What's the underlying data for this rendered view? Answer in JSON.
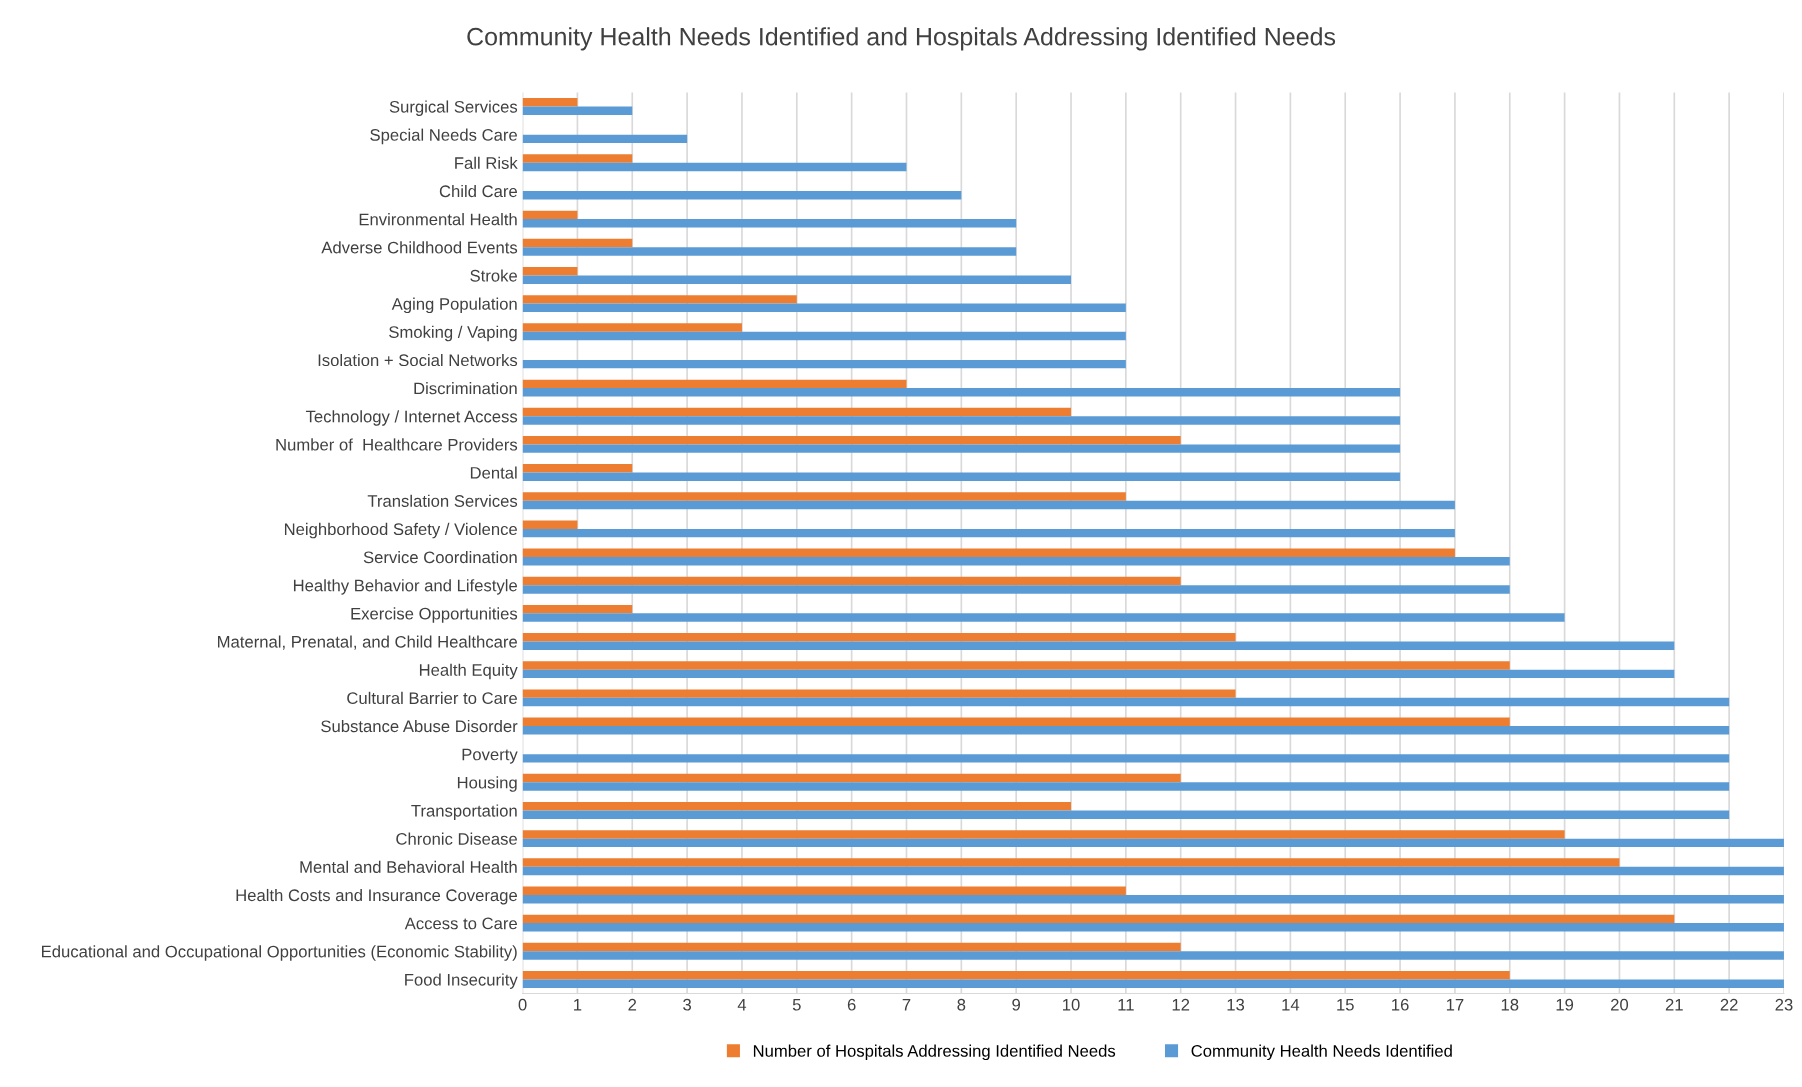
{
  "chart_data": {
    "type": "bar",
    "orientation": "horizontal",
    "title": "Community Health Needs Identified and Hospitals Addressing Identified Needs",
    "categories": [
      "Surgical Services",
      "Special Needs Care",
      "Fall Risk",
      "Child Care",
      "Environmental Health",
      "Adverse Childhood Events",
      "Stroke",
      "Aging Population",
      "Smoking / Vaping",
      "Isolation + Social Networks",
      "Discrimination",
      "Technology / Internet Access",
      "Number of  Healthcare Providers",
      "Dental",
      "Translation Services",
      "Neighborhood Safety / Violence",
      "Service Coordination",
      "Healthy Behavior and Lifestyle",
      "Exercise Opportunities",
      "Maternal, Prenatal, and Child Healthcare",
      "Health Equity",
      "Cultural Barrier to Care",
      "Substance Abuse Disorder",
      "Poverty",
      "Housing",
      "Transportation",
      "Chronic Disease",
      "Mental and Behavioral Health",
      "Health Costs and Insurance Coverage",
      "Access to Care",
      "Educational and Occupational Opportunities (Economic Stability)",
      "Food Insecurity"
    ],
    "series": [
      {
        "name": "Number of Hospitals Addressing Identified Needs",
        "color": "#ed7d31",
        "values": [
          1,
          0,
          2,
          0,
          1,
          2,
          1,
          5,
          4,
          0,
          7,
          10,
          12,
          2,
          11,
          1,
          17,
          12,
          2,
          13,
          18,
          13,
          18,
          0,
          12,
          10,
          19,
          20,
          11,
          21,
          12,
          18
        ]
      },
      {
        "name": "Community Health Needs Identified",
        "color": "#5b9bd5",
        "values": [
          2,
          3,
          7,
          8,
          9,
          9,
          10,
          11,
          11,
          11,
          16,
          16,
          16,
          16,
          17,
          17,
          18,
          18,
          19,
          21,
          21,
          22,
          22,
          22,
          22,
          22,
          23,
          23,
          23,
          23,
          23,
          23
        ]
      }
    ],
    "xlim": [
      0,
      23
    ],
    "xticks": [
      0,
      1,
      2,
      3,
      4,
      5,
      6,
      7,
      8,
      9,
      10,
      11,
      12,
      13,
      14,
      15,
      16,
      17,
      18,
      19,
      20,
      21,
      22,
      23
    ],
    "grid": "x",
    "legend": "bottom"
  }
}
